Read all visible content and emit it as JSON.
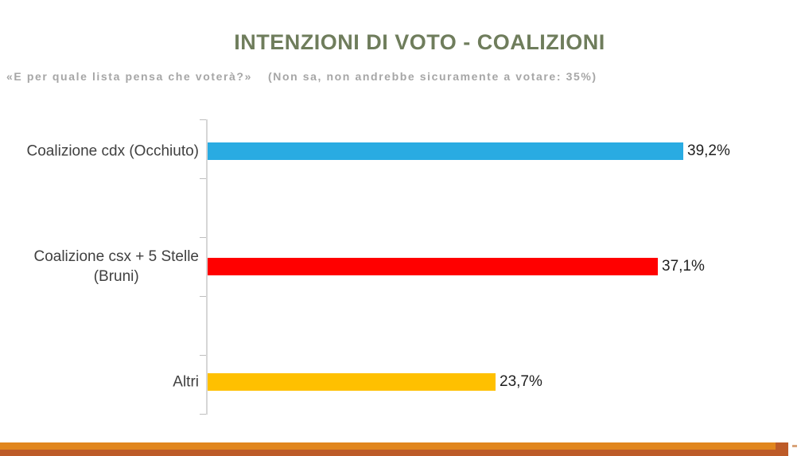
{
  "header": {
    "title": "INTENZIONI DI VOTO - COALIZIONI",
    "subtitle_question": "«E per quale lista pensa che voterà?»",
    "subtitle_note": "(Non sa, non andrebbe sicuramente a votare: 35%)"
  },
  "chart_data": {
    "type": "bar",
    "orientation": "horizontal",
    "title": "INTENZIONI DI VOTO - COALIZIONI",
    "annotation": "(Non sa, non andrebbe sicuramente a votare: 35%)",
    "categories": [
      "Coalizione cdx (Occhiuto)",
      "Coalizione csx + 5 Stelle (Bruni)",
      "Altri"
    ],
    "category_display_lines": [
      [
        "Coalizione cdx (Occhiuto)"
      ],
      [
        "Coalizione csx + 5 Stelle",
        "(Bruni)"
      ],
      [
        "Altri"
      ]
    ],
    "values": [
      39.2,
      37.1,
      23.7
    ],
    "value_labels": [
      "39,2%",
      "37,1%",
      "23,7%"
    ],
    "bar_colors": [
      "#29ABE2",
      "#FF0000",
      "#FFC000"
    ],
    "xlim": [
      0,
      45
    ],
    "grid": false,
    "legend": false
  },
  "colors": {
    "title": "#6F7D5C",
    "subtitle": "#A6A6A6",
    "category_label": "#404040",
    "value_label": "#1F1F1F",
    "axis": "#D6D6D6",
    "footer_orange": "#E1861E",
    "footer_rust": "#BD5B28"
  }
}
